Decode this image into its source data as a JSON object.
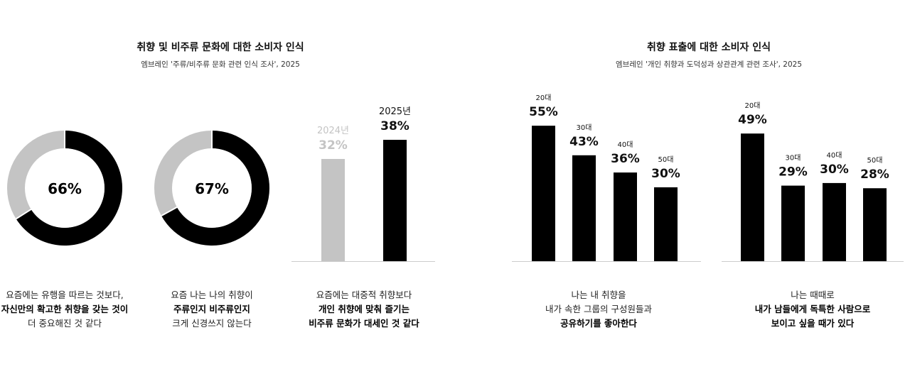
{
  "sections": [
    {
      "title": "취향 및 비주류 문화에 대한 소비자 인식",
      "source": "엠브레인 '주류/비주류 문화 관련 인식 조사', 2025"
    },
    {
      "title": "취향 표출에 대한 소비자 인식",
      "source": "엠브레인 '개인 취향과 도덕성과 상관관계 관련 조사', 2025"
    }
  ],
  "colors": {
    "primary": "#000000",
    "secondary": "#c4c4c4"
  },
  "chart_data": [
    {
      "type": "pie",
      "variant": "donut",
      "value_label": "66%",
      "values": [
        66,
        34
      ],
      "caption": [
        [
          "요즘에는 유행을 따르는 것보다,"
        ],
        [
          "자신만의 확고한 취향을 갖는 것이"
        ],
        [
          "더 중요해진 것 같다"
        ]
      ]
    },
    {
      "type": "pie",
      "variant": "donut",
      "value_label": "67%",
      "values": [
        67,
        33
      ],
      "caption": [
        [
          "요즘 나는 나의 취향이"
        ],
        [
          "주류인지 비주류인지"
        ],
        [
          "크게 신경쓰지 않는다"
        ]
      ]
    },
    {
      "type": "bar",
      "categories": [
        "2024년",
        "2025년"
      ],
      "values": [
        32,
        38
      ],
      "labels": [
        "32%",
        "38%"
      ],
      "caption": [
        [
          "요즘에는 대중적 취향보다"
        ],
        [
          "개인 취향에 맞춰 즐기는"
        ],
        [
          "비주류 문화가 대세인 것 같다"
        ]
      ]
    },
    {
      "type": "bar",
      "categories": [
        "20대",
        "30대",
        "40대",
        "50대"
      ],
      "values": [
        55,
        43,
        36,
        30
      ],
      "labels": [
        "55%",
        "43%",
        "36%",
        "30%"
      ],
      "caption": [
        [
          "나는 내 취향을"
        ],
        [
          "내가 속한 그룹의 구성원들과"
        ],
        [
          "공유하기를 좋아한다"
        ]
      ]
    },
    {
      "type": "bar",
      "categories": [
        "20대",
        "30대",
        "40대",
        "50대"
      ],
      "values": [
        49,
        29,
        30,
        28
      ],
      "labels": [
        "49%",
        "29%",
        "30%",
        "28%"
      ],
      "caption": [
        [
          "나는 때때로"
        ],
        [
          "내가 남들에게 독특한 사람으로"
        ],
        [
          "보이고 싶을 때가 있다"
        ]
      ]
    }
  ]
}
